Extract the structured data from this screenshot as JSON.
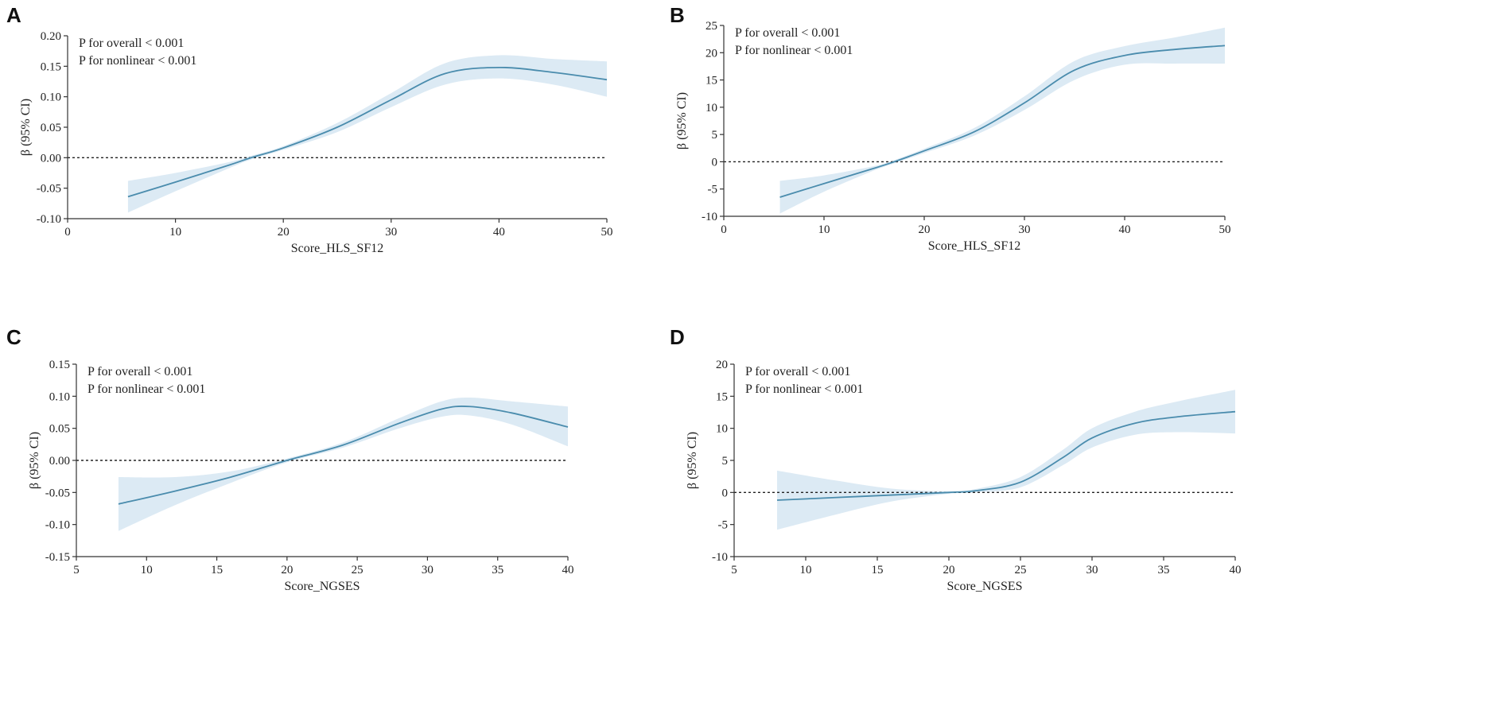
{
  "colors": {
    "line": "#4a8cad",
    "band": "#dceaf4",
    "axis": "#333333",
    "reference": "#222222"
  },
  "chart_data": [
    {
      "panel": "A",
      "type": "line",
      "xlabel": "Score_HLS_SF12",
      "ylabel": "β (95% CI)",
      "xlim": [
        0,
        50
      ],
      "ylim": [
        -0.1,
        0.2
      ],
      "xticks": [
        0,
        10,
        20,
        30,
        40,
        50
      ],
      "yticks": [
        -0.1,
        -0.05,
        0.0,
        0.05,
        0.1,
        0.15,
        0.2
      ],
      "ytick_labels": [
        "-0.10",
        "-0.05",
        "0.00",
        "0.05",
        "0.10",
        "0.15",
        "0.20"
      ],
      "annotations": [
        "P for overall < 0.001",
        "P for nonlinear < 0.001"
      ],
      "reference_line": 0,
      "series": [
        {
          "name": "β",
          "x": [
            5.6,
            10,
            15,
            17,
            20,
            25,
            30,
            35,
            40,
            45,
            50
          ],
          "y": [
            -0.064,
            -0.04,
            -0.012,
            0.0,
            0.016,
            0.05,
            0.095,
            0.138,
            0.148,
            0.14,
            0.128
          ],
          "lower": [
            -0.09,
            -0.055,
            -0.017,
            -0.003,
            0.013,
            0.042,
            0.083,
            0.12,
            0.13,
            0.12,
            0.1
          ],
          "upper": [
            -0.038,
            -0.025,
            -0.007,
            0.003,
            0.019,
            0.057,
            0.106,
            0.155,
            0.168,
            0.162,
            0.158
          ]
        }
      ]
    },
    {
      "panel": "B",
      "type": "line",
      "xlabel": "Score_HLS_SF12",
      "ylabel": "β (95% CI)",
      "xlim": [
        0,
        50
      ],
      "ylim": [
        -10,
        25
      ],
      "xticks": [
        0,
        10,
        20,
        30,
        40,
        50
      ],
      "yticks": [
        -10,
        -5,
        0,
        5,
        10,
        15,
        20,
        25
      ],
      "ytick_labels": [
        "-10",
        "-5",
        "0",
        "5",
        "10",
        "15",
        "20",
        "25"
      ],
      "annotations": [
        "P for overall < 0.001",
        "P for nonlinear < 0.001"
      ],
      "reference_line": 0,
      "series": [
        {
          "name": "β",
          "x": [
            5.6,
            10,
            15,
            17,
            20,
            25,
            30,
            35,
            40,
            45,
            50
          ],
          "y": [
            -6.5,
            -4.0,
            -1.2,
            0.0,
            2.0,
            5.5,
            10.8,
            16.8,
            19.5,
            20.6,
            21.3
          ],
          "lower": [
            -9.5,
            -5.5,
            -1.6,
            -0.3,
            1.6,
            4.8,
            9.5,
            15.0,
            17.8,
            18.0,
            18.0
          ],
          "upper": [
            -3.5,
            -2.5,
            -0.8,
            0.3,
            2.4,
            6.2,
            12.0,
            18.5,
            21.2,
            22.8,
            24.6
          ]
        }
      ]
    },
    {
      "panel": "C",
      "type": "line",
      "xlabel": "Score_NGSES",
      "ylabel": "β (95% CI)",
      "xlim": [
        5,
        40
      ],
      "ylim": [
        -0.15,
        0.15
      ],
      "xticks": [
        5,
        10,
        15,
        20,
        25,
        30,
        35,
        40
      ],
      "yticks": [
        -0.15,
        -0.1,
        -0.05,
        0.0,
        0.05,
        0.1,
        0.15
      ],
      "ytick_labels": [
        "-0.15",
        "-0.10",
        "-0.05",
        "0.00",
        "0.05",
        "0.10",
        "0.15"
      ],
      "annotations": [
        "P for overall < 0.001",
        "P for nonlinear < 0.001"
      ],
      "reference_line": 0,
      "series": [
        {
          "name": "β",
          "x": [
            8,
            12,
            16,
            20,
            24,
            28,
            31,
            33,
            36,
            40
          ],
          "y": [
            -0.068,
            -0.048,
            -0.026,
            0.0,
            0.024,
            0.058,
            0.08,
            0.084,
            0.074,
            0.052
          ],
          "lower": [
            -0.11,
            -0.07,
            -0.035,
            -0.003,
            0.02,
            0.05,
            0.068,
            0.07,
            0.056,
            0.022
          ],
          "upper": [
            -0.026,
            -0.026,
            -0.017,
            0.003,
            0.028,
            0.066,
            0.092,
            0.098,
            0.092,
            0.084
          ]
        }
      ]
    },
    {
      "panel": "D",
      "type": "line",
      "xlabel": "Score_NGSES",
      "ylabel": "β (95% CI)",
      "xlim": [
        5,
        40
      ],
      "ylim": [
        -10,
        20
      ],
      "xticks": [
        5,
        10,
        15,
        20,
        25,
        30,
        35,
        40
      ],
      "yticks": [
        -10,
        -5,
        0,
        5,
        10,
        15,
        20
      ],
      "ytick_labels": [
        "-10",
        "-5",
        "0",
        "5",
        "10",
        "15",
        "20"
      ],
      "annotations": [
        "P for overall < 0.001",
        "P for nonlinear < 0.001"
      ],
      "reference_line": 0,
      "series": [
        {
          "name": "β",
          "x": [
            8,
            12,
            16,
            20,
            22,
            25,
            28,
            30,
            33,
            36,
            40
          ],
          "y": [
            -1.2,
            -0.8,
            -0.4,
            0.0,
            0.3,
            1.6,
            5.5,
            8.5,
            10.8,
            11.8,
            12.6
          ],
          "lower": [
            -5.8,
            -3.5,
            -1.4,
            -0.2,
            0.0,
            0.8,
            4.3,
            7.0,
            9.0,
            9.4,
            9.2
          ],
          "upper": [
            3.4,
            1.9,
            0.6,
            0.2,
            0.6,
            2.4,
            6.7,
            10.0,
            12.6,
            14.2,
            16.0
          ]
        }
      ]
    }
  ]
}
